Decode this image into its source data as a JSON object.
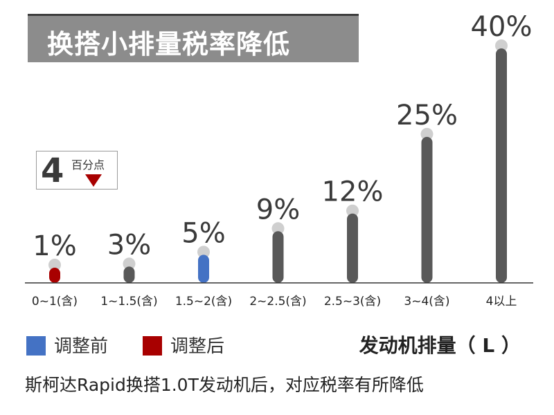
{
  "title": "换搭小排量税率降低",
  "badge": {
    "value": "4",
    "unit": "百分点"
  },
  "legend": [
    {
      "label": "调整前",
      "color": "#4472c4"
    },
    {
      "label": "调整后",
      "color": "#a80000"
    }
  ],
  "xlabel": "发动机排量（ L ）",
  "caption": "斯柯达Rapid换搭1.0T发动机后，对应税率有所降低",
  "chart_data": {
    "type": "bar",
    "categories": [
      "0~1(含)",
      "1~1.5(含)",
      "1.5~2(含)",
      "2~2.5(含)",
      "2.5~3(含)",
      "3~4(含)",
      "4以上"
    ],
    "values": [
      1,
      3,
      5,
      9,
      12,
      25,
      40
    ],
    "data_labels": [
      "1%",
      "3%",
      "5%",
      "9%",
      "12%",
      "25%",
      "40%"
    ],
    "colors": [
      "#a80000",
      "#595959",
      "#4472c4",
      "#595959",
      "#595959",
      "#595959",
      "#595959"
    ],
    "ylim": [
      0,
      40
    ],
    "grid": false
  }
}
